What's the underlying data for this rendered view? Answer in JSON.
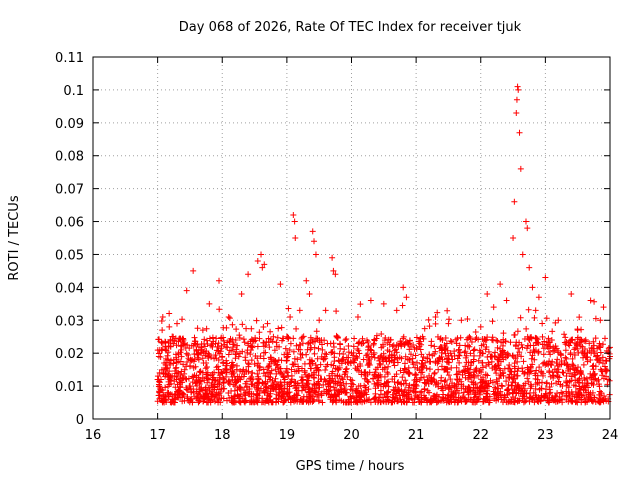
{
  "chart_data": {
    "type": "scatter",
    "title": "Day 068 of 2026, Rate Of TEC Index for receiver tjuk",
    "xlabel": "GPS time / hours",
    "ylabel": "ROTI / TECUs",
    "xlim": [
      16,
      24
    ],
    "ylim": [
      0,
      0.11
    ],
    "xticks": [
      16,
      17,
      18,
      19,
      20,
      21,
      22,
      23,
      24
    ],
    "xtick_labels": [
      "16",
      "17",
      "18",
      "19",
      "20",
      "21",
      "22",
      "23",
      "24"
    ],
    "yticks": [
      0,
      0.01,
      0.02,
      0.03,
      0.04,
      0.05,
      0.06,
      0.07,
      0.08,
      0.09,
      0.1,
      0.11
    ],
    "ytick_labels": [
      "0",
      "0.01",
      "0.02",
      "0.03",
      "0.04",
      "0.05",
      "0.06",
      "0.07",
      "0.08",
      "0.09",
      "0.1",
      "0.11"
    ],
    "grid": true,
    "marker": "+",
    "series": [
      {
        "name": "ROTI",
        "color": "#ff0000",
        "points": [
          [
            17.0,
            0.012
          ],
          [
            17.02,
            0.019
          ],
          [
            17.05,
            0.009
          ],
          [
            17.07,
            0.027
          ],
          [
            17.08,
            0.031
          ],
          [
            17.1,
            0.015
          ],
          [
            17.12,
            0.022
          ],
          [
            17.15,
            0.008
          ],
          [
            17.18,
            0.028
          ],
          [
            17.2,
            0.013
          ],
          [
            17.25,
            0.018
          ],
          [
            17.3,
            0.029
          ],
          [
            17.35,
            0.011
          ],
          [
            17.4,
            0.024
          ],
          [
            17.45,
            0.039
          ],
          [
            17.5,
            0.016
          ],
          [
            17.55,
            0.045
          ],
          [
            17.6,
            0.021
          ],
          [
            17.65,
            0.009
          ],
          [
            17.7,
            0.027
          ],
          [
            17.8,
            0.035
          ],
          [
            17.85,
            0.012
          ],
          [
            17.95,
            0.042
          ],
          [
            18.0,
            0.019
          ],
          [
            18.1,
            0.031
          ],
          [
            18.2,
            0.01
          ],
          [
            18.3,
            0.038
          ],
          [
            18.4,
            0.044
          ],
          [
            18.45,
            0.022
          ],
          [
            18.55,
            0.048
          ],
          [
            18.6,
            0.05
          ],
          [
            18.62,
            0.046
          ],
          [
            18.65,
            0.047
          ],
          [
            18.7,
            0.029
          ],
          [
            18.8,
            0.017
          ],
          [
            18.9,
            0.041
          ],
          [
            19.0,
            0.025
          ],
          [
            19.05,
            0.031
          ],
          [
            19.1,
            0.062
          ],
          [
            19.12,
            0.06
          ],
          [
            19.13,
            0.055
          ],
          [
            19.2,
            0.033
          ],
          [
            19.25,
            0.012
          ],
          [
            19.3,
            0.042
          ],
          [
            19.35,
            0.038
          ],
          [
            19.4,
            0.057
          ],
          [
            19.42,
            0.054
          ],
          [
            19.45,
            0.05
          ],
          [
            19.5,
            0.03
          ],
          [
            19.55,
            0.021
          ],
          [
            19.6,
            0.033
          ],
          [
            19.7,
            0.049
          ],
          [
            19.72,
            0.045
          ],
          [
            19.75,
            0.044
          ],
          [
            19.8,
            0.015
          ],
          [
            19.9,
            0.008
          ],
          [
            20.0,
            0.02
          ],
          [
            20.1,
            0.031
          ],
          [
            20.2,
            0.014
          ],
          [
            20.3,
            0.036
          ],
          [
            20.4,
            0.011
          ],
          [
            20.5,
            0.035
          ],
          [
            20.6,
            0.024
          ],
          [
            20.7,
            0.033
          ],
          [
            20.8,
            0.04
          ],
          [
            20.85,
            0.037
          ],
          [
            20.9,
            0.018
          ],
          [
            21.0,
            0.012
          ],
          [
            21.1,
            0.025
          ],
          [
            21.2,
            0.008
          ],
          [
            21.3,
            0.031
          ],
          [
            21.4,
            0.016
          ],
          [
            21.5,
            0.029
          ],
          [
            21.6,
            0.01
          ],
          [
            21.7,
            0.03
          ],
          [
            21.8,
            0.022
          ],
          [
            21.9,
            0.013
          ],
          [
            22.0,
            0.028
          ],
          [
            22.1,
            0.038
          ],
          [
            22.2,
            0.034
          ],
          [
            22.3,
            0.041
          ],
          [
            22.4,
            0.036
          ],
          [
            22.5,
            0.055
          ],
          [
            22.52,
            0.066
          ],
          [
            22.55,
            0.093
          ],
          [
            22.56,
            0.097
          ],
          [
            22.57,
            0.101
          ],
          [
            22.58,
            0.1
          ],
          [
            22.6,
            0.087
          ],
          [
            22.62,
            0.076
          ],
          [
            22.65,
            0.05
          ],
          [
            22.7,
            0.06
          ],
          [
            22.72,
            0.058
          ],
          [
            22.75,
            0.046
          ],
          [
            22.8,
            0.04
          ],
          [
            22.85,
            0.033
          ],
          [
            22.9,
            0.037
          ],
          [
            23.0,
            0.043
          ],
          [
            23.1,
            0.024
          ],
          [
            23.2,
            0.03
          ],
          [
            23.3,
            0.017
          ],
          [
            23.4,
            0.038
          ],
          [
            23.5,
            0.027
          ],
          [
            23.6,
            0.02
          ],
          [
            23.7,
            0.036
          ],
          [
            23.75,
            0.012
          ],
          [
            23.8,
            0.018
          ],
          [
            23.85,
            0.03
          ],
          [
            23.9,
            0.034
          ],
          [
            24.0,
            0.019
          ]
        ]
      }
    ],
    "density_band": {
      "x_range": [
        17.0,
        24.0
      ],
      "y_core_range": [
        0.005,
        0.025
      ],
      "count": 2600
    }
  }
}
